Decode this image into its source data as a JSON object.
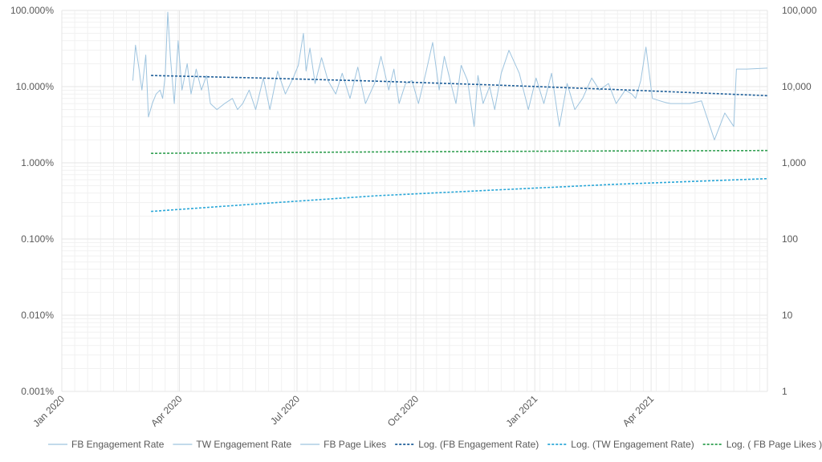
{
  "chart_data": {
    "type": "line",
    "title": "",
    "y_scale": "log",
    "y_left_ticks": [
      "0.001%",
      "0.010%",
      "0.100%",
      "1.000%",
      "10.000%",
      "100.000%"
    ],
    "y_left_range": [
      1e-05,
      1
    ],
    "y_right_ticks": [
      "1",
      "10",
      "100",
      "1,000",
      "10,000",
      "100,000"
    ],
    "y_right_range": [
      1,
      100000
    ],
    "x_ticks": [
      "Jan 2020",
      "Apr 2020",
      "Jul 2020",
      "Oct 2020",
      "Jan 2021",
      "Apr 2021"
    ],
    "x_tick_dates": [
      "2020-01-01",
      "2020-04-01",
      "2020-07-01",
      "2020-10-01",
      "2021-01-01",
      "2021-04-01"
    ],
    "x_range": [
      "2020-01-01",
      "2021-06-30"
    ],
    "grid": true,
    "legend_position": "bottom",
    "colors": {
      "fb_rate": "#9ec4df",
      "fb_trend": "#1f5f99",
      "tw_trend": "#2aa7d8",
      "likes_trend": "#2e9e4f",
      "grid": "#e6e6e6",
      "tick_text": "#595959"
    },
    "series": [
      {
        "name": "FB Engagement Rate",
        "key": "fb_rate",
        "axis": "left",
        "style": "solid",
        "dates": [
          "2020-02-25",
          "2020-02-27",
          "2020-03-01",
          "2020-03-03",
          "2020-03-06",
          "2020-03-08",
          "2020-03-11",
          "2020-03-14",
          "2020-03-17",
          "2020-03-19",
          "2020-03-21",
          "2020-03-23",
          "2020-03-25",
          "2020-03-28",
          "2020-03-31",
          "2020-04-03",
          "2020-04-07",
          "2020-04-10",
          "2020-04-14",
          "2020-04-18",
          "2020-04-22",
          "2020-04-25",
          "2020-04-30",
          "2020-05-06",
          "2020-05-12",
          "2020-05-16",
          "2020-05-20",
          "2020-05-25",
          "2020-05-30",
          "2020-06-05",
          "2020-06-10",
          "2020-06-16",
          "2020-06-22",
          "2020-06-28",
          "2020-07-02",
          "2020-07-06",
          "2020-07-08",
          "2020-07-11",
          "2020-07-15",
          "2020-07-20",
          "2020-07-25",
          "2020-07-31",
          "2020-08-05",
          "2020-08-11",
          "2020-08-17",
          "2020-08-23",
          "2020-08-30",
          "2020-09-04",
          "2020-09-10",
          "2020-09-14",
          "2020-09-18",
          "2020-09-23",
          "2020-09-28",
          "2020-10-03",
          "2020-10-09",
          "2020-10-14",
          "2020-10-19",
          "2020-10-23",
          "2020-10-27",
          "2020-11-01",
          "2020-11-05",
          "2020-11-10",
          "2020-11-15",
          "2020-11-18",
          "2020-11-22",
          "2020-11-27",
          "2020-12-01",
          "2020-12-06",
          "2020-12-12",
          "2020-12-20",
          "2020-12-27",
          "2021-01-02",
          "2021-01-08",
          "2021-01-14",
          "2021-01-20",
          "2021-01-26",
          "2021-02-01",
          "2021-02-07",
          "2021-02-14",
          "2021-02-20",
          "2021-02-27",
          "2021-03-05",
          "2021-03-12",
          "2021-03-17",
          "2021-03-20",
          "2021-03-24",
          "2021-03-28",
          "2021-04-02",
          "2021-04-08",
          "2021-04-12",
          "2021-04-16",
          "2021-04-22",
          "2021-05-01",
          "2021-05-10",
          "2021-05-20",
          "2021-05-28",
          "2021-06-04",
          "2021-06-06",
          "2021-06-08",
          "2021-06-10",
          "2021-06-14",
          "2021-06-30"
        ],
        "values": [
          0.12,
          0.35,
          0.16,
          0.09,
          0.26,
          0.04,
          0.06,
          0.08,
          0.09,
          0.07,
          0.14,
          0.95,
          0.25,
          0.06,
          0.4,
          0.09,
          0.2,
          0.08,
          0.17,
          0.09,
          0.14,
          0.06,
          0.05,
          0.06,
          0.07,
          0.05,
          0.06,
          0.09,
          0.05,
          0.13,
          0.05,
          0.16,
          0.08,
          0.13,
          0.19,
          0.5,
          0.16,
          0.32,
          0.11,
          0.24,
          0.12,
          0.08,
          0.15,
          0.07,
          0.18,
          0.06,
          0.11,
          0.25,
          0.09,
          0.17,
          0.06,
          0.11,
          0.12,
          0.06,
          0.16,
          0.38,
          0.09,
          0.25,
          0.13,
          0.06,
          0.19,
          0.12,
          0.03,
          0.14,
          0.06,
          0.1,
          0.05,
          0.15,
          0.3,
          0.15,
          0.05,
          0.13,
          0.06,
          0.15,
          0.03,
          0.11,
          0.05,
          0.07,
          0.13,
          0.09,
          0.11,
          0.06,
          0.09,
          0.08,
          0.07,
          0.12,
          0.33,
          0.07,
          0.065,
          0.062,
          0.06,
          0.06,
          0.06,
          0.065,
          0.02,
          0.045,
          0.03,
          0.17,
          0.17,
          0.17,
          0.17,
          0.175
        ]
      },
      {
        "name": "TW Engagement Rate",
        "key": "tw_rate",
        "axis": "left",
        "style": "solid",
        "dates": [],
        "values": []
      },
      {
        "name": "FB Page Likes",
        "key": "fb_likes",
        "axis": "right",
        "style": "solid",
        "dates": [],
        "values": []
      },
      {
        "name": "Log. (FB Engagement Rate)",
        "key": "fb_trend",
        "axis": "left",
        "style": "dashed",
        "dates": [
          "2020-03-10",
          "2020-06-01",
          "2020-09-01",
          "2020-12-01",
          "2021-03-01",
          "2021-06-30"
        ],
        "values": [
          0.14,
          0.13,
          0.118,
          0.105,
          0.092,
          0.076
        ]
      },
      {
        "name": "Log. (TW Engagement Rate)",
        "key": "tw_trend",
        "axis": "left",
        "style": "dashed",
        "dates": [
          "2020-03-10",
          "2020-06-01",
          "2020-09-01",
          "2020-12-01",
          "2021-03-01",
          "2021-06-30"
        ],
        "values": [
          0.0023,
          0.0029,
          0.0037,
          0.0044,
          0.0052,
          0.0062
        ]
      },
      {
        "name": "Log. ( FB Page Likes )",
        "key": "likes_trend",
        "axis": "right",
        "style": "dashed",
        "dates": [
          "2020-03-10",
          "2020-06-01",
          "2020-09-01",
          "2020-12-01",
          "2021-03-01",
          "2021-06-30"
        ],
        "values": [
          1330,
          1360,
          1390,
          1410,
          1430,
          1450
        ]
      }
    ]
  }
}
